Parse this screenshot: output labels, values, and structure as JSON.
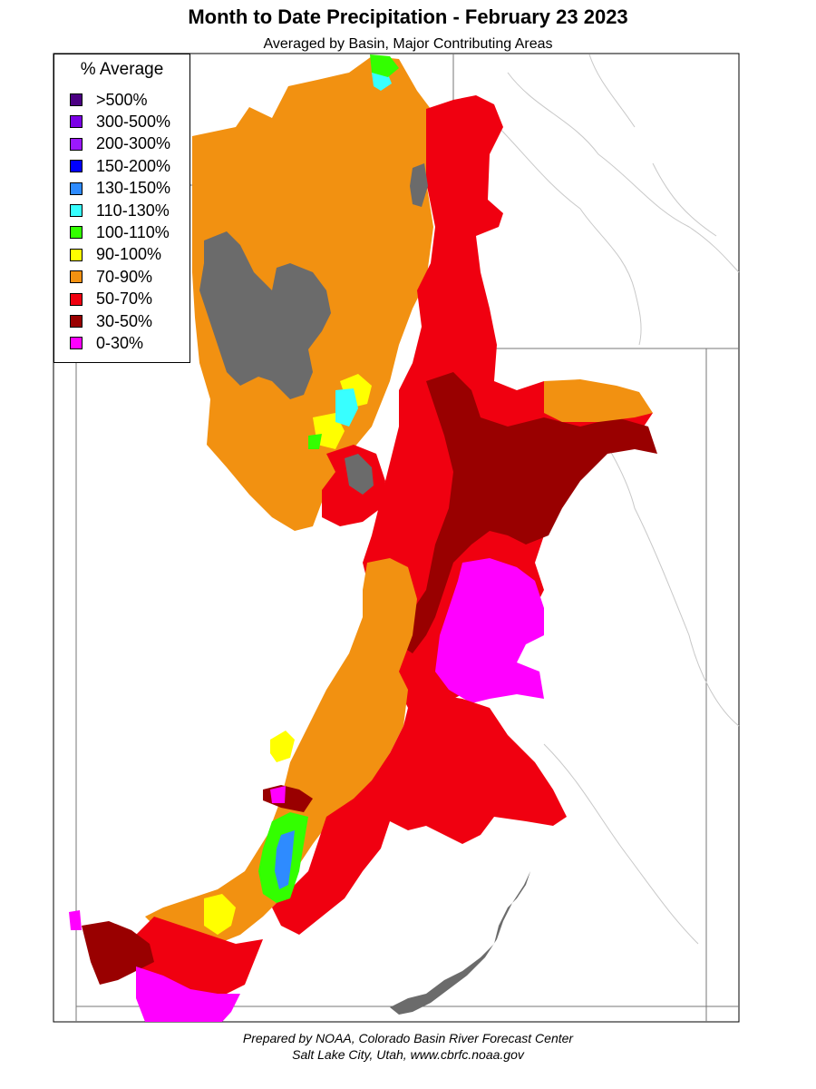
{
  "title": "Month to Date Precipitation - February 23 2023",
  "subtitle": "Averaged by Basin, Major Contributing Areas",
  "legend": {
    "title": "% Average",
    "items": [
      {
        "label": ">500%",
        "color": "#4b0082"
      },
      {
        "label": "300-500%",
        "color": "#7b00e6"
      },
      {
        "label": "200-300%",
        "color": "#9b19ff"
      },
      {
        "label": "150-200%",
        "color": "#0000ff"
      },
      {
        "label": "130-150%",
        "color": "#2e8bff"
      },
      {
        "label": "110-130%",
        "color": "#38ffff"
      },
      {
        "label": "100-110%",
        "color": "#33ff00"
      },
      {
        "label": "90-100%",
        "color": "#ffff00"
      },
      {
        "label": "70-90%",
        "color": "#f29111"
      },
      {
        "label": "50-70%",
        "color": "#f00010"
      },
      {
        "label": "30-50%",
        "color": "#990000"
      },
      {
        "label": "0-30%",
        "color": "#ff00ff"
      }
    ]
  },
  "no_data_color": "#6b6b6b",
  "footer": {
    "line1": "Prepared by NOAA, Colorado Basin River Forecast Center",
    "line2": "Salt Lake City, Utah, www.cbrfc.noaa.gov"
  }
}
